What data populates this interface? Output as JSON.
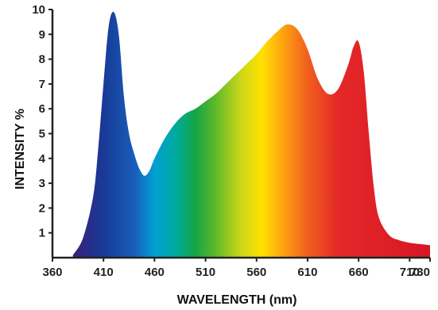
{
  "chart_data": {
    "type": "area",
    "title": "",
    "xlabel": "WAVELENGTH (nm)",
    "ylabel": "INTENSITY %",
    "xlim": [
      360,
      730
    ],
    "ylim": [
      0,
      10
    ],
    "x_ticks": [
      "360",
      "410",
      "460",
      "510",
      "560",
      "610",
      "660",
      "710",
      "730"
    ],
    "y_ticks": [
      "1",
      "2",
      "3",
      "4",
      "5",
      "6",
      "7",
      "8",
      "9",
      "10"
    ],
    "grid": false,
    "legend": "none",
    "fill": "visible-spectrum gradient (violet to red)",
    "series": [
      {
        "x": [
          380,
          390,
          400,
          405,
          410,
          415,
          420,
          425,
          430,
          435,
          440,
          445,
          450,
          455,
          460,
          470,
          480,
          490,
          500,
          510,
          520,
          530,
          540,
          550,
          560,
          570,
          580,
          590,
          600,
          610,
          620,
          630,
          640,
          650,
          655,
          660,
          665,
          670,
          675,
          680,
          690,
          700,
          710,
          720,
          730
        ],
        "y": [
          0.1,
          0.8,
          2.5,
          4.5,
          7.0,
          9.3,
          9.9,
          9.0,
          6.5,
          5.0,
          4.2,
          3.6,
          3.3,
          3.5,
          4.0,
          4.8,
          5.4,
          5.8,
          6.0,
          6.3,
          6.6,
          7.0,
          7.4,
          7.8,
          8.2,
          8.7,
          9.1,
          9.4,
          9.2,
          8.4,
          7.2,
          6.6,
          6.8,
          7.8,
          8.5,
          8.7,
          7.5,
          5.0,
          2.8,
          1.6,
          0.9,
          0.7,
          0.6,
          0.55,
          0.5
        ]
      }
    ]
  }
}
